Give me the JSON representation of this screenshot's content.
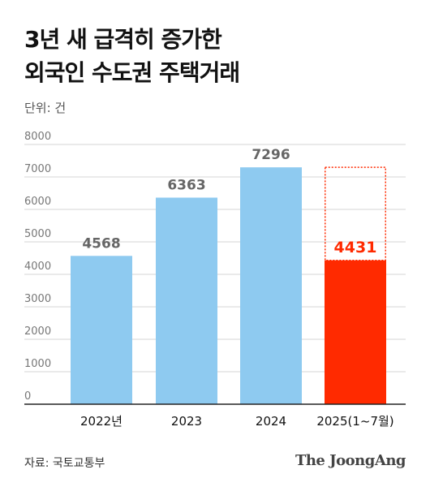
{
  "title": {
    "line1": "3년 새 급격히 증가한",
    "line2": "외국인 수도권 주택거래"
  },
  "unit_label": "단위: 건",
  "source": "자료: 국토교통부",
  "brand": "The JoongAng",
  "colors": {
    "bar": "#8ecaf0",
    "highlight": "#ff2a00",
    "value_label": "#666666",
    "highlight_label": "#ff2a00",
    "axis": "#222222",
    "grid": "#d6d6d6",
    "tick": "#777777"
  },
  "chart_data": {
    "type": "bar",
    "categories": [
      "2022년",
      "2023",
      "2024",
      "2025(1~7월)"
    ],
    "values": [
      4568,
      6363,
      7296,
      4431
    ],
    "value_labels": [
      "4568",
      "6363",
      "7296",
      "4431"
    ],
    "highlight_index": 3,
    "projection_value": 7296,
    "ylim": [
      0,
      8000
    ],
    "yticks": [
      0,
      1000,
      2000,
      3000,
      4000,
      5000,
      6000,
      7000,
      8000
    ],
    "ytick_labels": [
      "0",
      "1000",
      "2000",
      "3000",
      "4000",
      "5000",
      "6000",
      "7000",
      "8000"
    ],
    "grid": true,
    "xlabel": "",
    "ylabel": ""
  }
}
